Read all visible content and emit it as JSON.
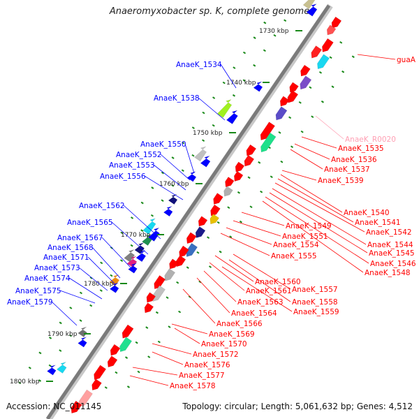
{
  "title": "Anaeromyxobacter sp. K, complete genome",
  "footer": {
    "accession": "Accession: NC_011145",
    "topology": "Topology: circular; Length: 5,061,632 bp; Genes: 4,512"
  },
  "colors": {
    "backbone": "#808080",
    "forward_gene": "#ff0000",
    "reverse_gene": "#0000ff",
    "forward_label": "#ff0000",
    "reverse_label": "#0000ff",
    "rna_label": "#ffa0b4",
    "gc_tick": "#1a8a1a"
  },
  "kbp_ticks": [
    "1730 kbp",
    "1740 kbp",
    "1750 kbp",
    "1760 kbp",
    "1770 kbp",
    "1780 kbp",
    "1790 kbp",
    "1800 kbp"
  ],
  "reverse_labels": [
    "AnaeK_1534",
    "AnaeK_1538",
    "AnaeK_1550",
    "AnaeK_1552",
    "AnaeK_1553",
    "AnaeK_1556",
    "AnaeK_1562",
    "AnaeK_1565",
    "AnaeK_1567",
    "AnaeK_1568",
    "AnaeK_1571",
    "AnaeK_1573",
    "AnaeK_1574",
    "AnaeK_1575",
    "AnaeK_1579"
  ],
  "forward_labels": [
    "guaA",
    "AnaeK_R0020",
    "AnaeK_1535",
    "AnaeK_1536",
    "AnaeK_1537",
    "AnaeK_1539",
    "AnaeK_1540",
    "AnaeK_1541",
    "AnaeK_1542",
    "AnaeK_1544",
    "AnaeK_1545",
    "AnaeK_1546",
    "AnaeK_1548",
    "AnaeK_1549",
    "AnaeK_1551",
    "AnaeK_1554",
    "AnaeK_1555",
    "AnaeK_1560",
    "AnaeK_1557",
    "AnaeK_1561",
    "AnaeK_1558",
    "AnaeK_1563",
    "AnaeK_1559",
    "AnaeK_1564",
    "AnaeK_1566",
    "AnaeK_1569",
    "AnaeK_1570",
    "AnaeK_1572",
    "AnaeK_1576",
    "AnaeK_1577",
    "AnaeK_1578"
  ]
}
